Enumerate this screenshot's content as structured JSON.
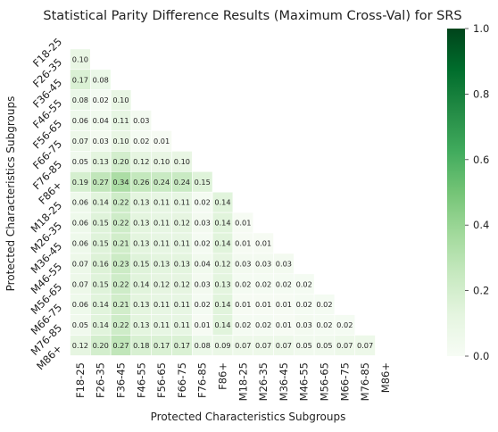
{
  "chart_data": {
    "type": "heatmap",
    "title": "Statistical Parity Difference Results (Maximum Cross-Val) for SRS",
    "xlabel": "Protected Characteristics Subgroups",
    "ylabel": "Protected Characteristics Subgroups",
    "categories": [
      "F18-25",
      "F26-35",
      "F36-45",
      "F46-55",
      "F56-65",
      "F66-75",
      "F76-85",
      "F86+",
      "M18-25",
      "M26-35",
      "M36-45",
      "M46-55",
      "M56-65",
      "M66-75",
      "M76-85",
      "M86+"
    ],
    "matrix_lower": [
      [],
      [
        0.1
      ],
      [
        0.17,
        0.08
      ],
      [
        0.08,
        0.02,
        0.1
      ],
      [
        0.06,
        0.04,
        0.11,
        0.03
      ],
      [
        0.07,
        0.03,
        0.1,
        0.02,
        0.01
      ],
      [
        0.05,
        0.13,
        0.2,
        0.12,
        0.1,
        0.1
      ],
      [
        0.19,
        0.27,
        0.34,
        0.26,
        0.24,
        0.24,
        0.15
      ],
      [
        0.06,
        0.14,
        0.22,
        0.13,
        0.11,
        0.11,
        0.02,
        0.14
      ],
      [
        0.06,
        0.15,
        0.22,
        0.13,
        0.11,
        0.12,
        0.03,
        0.14,
        0.01
      ],
      [
        0.06,
        0.15,
        0.21,
        0.13,
        0.11,
        0.11,
        0.02,
        0.14,
        0.01,
        0.01
      ],
      [
        0.07,
        0.16,
        0.23,
        0.15,
        0.13,
        0.13,
        0.04,
        0.12,
        0.03,
        0.03,
        0.03
      ],
      [
        0.07,
        0.15,
        0.22,
        0.14,
        0.12,
        0.12,
        0.03,
        0.13,
        0.02,
        0.02,
        0.02,
        0.02
      ],
      [
        0.06,
        0.14,
        0.21,
        0.13,
        0.11,
        0.11,
        0.02,
        0.14,
        0.01,
        0.01,
        0.01,
        0.02,
        0.02
      ],
      [
        0.05,
        0.14,
        0.22,
        0.13,
        0.11,
        0.11,
        0.01,
        0.14,
        0.02,
        0.02,
        0.01,
        0.03,
        0.02,
        0.02
      ],
      [
        0.12,
        0.2,
        0.27,
        0.18,
        0.17,
        0.17,
        0.08,
        0.09,
        0.07,
        0.07,
        0.07,
        0.05,
        0.05,
        0.07,
        0.07
      ]
    ],
    "masked": "upper triangle including diagonal",
    "colorscale": "Greens",
    "vmin": 0.0,
    "vmax": 1.0,
    "colorbar_ticks": [
      "0.0",
      "0.2",
      "0.4",
      "0.6",
      "0.8",
      "1.0"
    ],
    "colors": {
      "low": "#f7fcf5",
      "high": "#00441b"
    }
  }
}
